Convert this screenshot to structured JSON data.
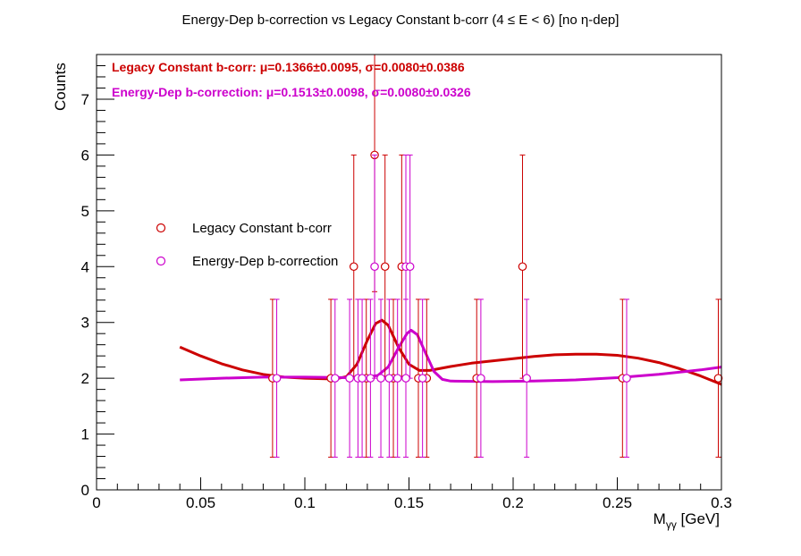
{
  "chart_data": {
    "type": "scatter",
    "title": "Energy-Dep b-correction vs Legacy Constant b-corr   (4 ≤ E < 6)   [no η-dep]",
    "xlabel": "M",
    "xlabel_sub": "γγ",
    "xlabel_unit": " [GeV]",
    "ylabel": "Counts",
    "xlim": [
      0,
      0.3
    ],
    "ylim": [
      0,
      7.8
    ],
    "x_ticks": [
      {
        "v": 0,
        "label": "0"
      },
      {
        "v": 0.05,
        "label": "0.05"
      },
      {
        "v": 0.1,
        "label": "0.1"
      },
      {
        "v": 0.15,
        "label": "0.15"
      },
      {
        "v": 0.2,
        "label": "0.2"
      },
      {
        "v": 0.25,
        "label": "0.25"
      },
      {
        "v": 0.3,
        "label": "0.3"
      }
    ],
    "y_ticks": [
      {
        "v": 0,
        "label": "0"
      },
      {
        "v": 1,
        "label": "1"
      },
      {
        "v": 2,
        "label": "2"
      },
      {
        "v": 3,
        "label": "3"
      },
      {
        "v": 4,
        "label": "4"
      },
      {
        "v": 5,
        "label": "5"
      },
      {
        "v": 6,
        "label": "6"
      },
      {
        "v": 7,
        "label": "7"
      }
    ],
    "grid": false,
    "legend_placement": "center-left",
    "stat_lines": [
      {
        "text": "Legacy Constant b-corr: μ=0.1366±0.0095, σ=0.0080±0.0386",
        "color": "#cc0000"
      },
      {
        "text": "Energy-Dep b-correction: μ=0.1513±0.0098, σ=0.0080±0.0326",
        "color": "#cc00cc"
      }
    ],
    "series": [
      {
        "name": "Legacy Constant b-corr",
        "color": "#cc0000",
        "points": [
          {
            "x": 0.0845,
            "y": 2,
            "err": 1.414
          },
          {
            "x": 0.1125,
            "y": 2,
            "err": 1.414
          },
          {
            "x": 0.1235,
            "y": 4,
            "err": 2.0
          },
          {
            "x": 0.1295,
            "y": 2,
            "err": 1.414
          },
          {
            "x": 0.1335,
            "y": 6,
            "err": 2.449
          },
          {
            "x": 0.1385,
            "y": 4,
            "err": 2.0
          },
          {
            "x": 0.1425,
            "y": 2,
            "err": 1.414
          },
          {
            "x": 0.1465,
            "y": 4,
            "err": 2.0
          },
          {
            "x": 0.1545,
            "y": 2,
            "err": 1.414
          },
          {
            "x": 0.1585,
            "y": 2,
            "err": 1.414
          },
          {
            "x": 0.1825,
            "y": 2,
            "err": 1.414
          },
          {
            "x": 0.2045,
            "y": 4,
            "err": 2.0
          },
          {
            "x": 0.2525,
            "y": 2,
            "err": 1.414
          },
          {
            "x": 0.2985,
            "y": 2,
            "err": 1.414
          }
        ],
        "fit": [
          {
            "x": 0.04,
            "y": 2.56
          },
          {
            "x": 0.05,
            "y": 2.4
          },
          {
            "x": 0.06,
            "y": 2.26
          },
          {
            "x": 0.07,
            "y": 2.15
          },
          {
            "x": 0.08,
            "y": 2.07
          },
          {
            "x": 0.09,
            "y": 2.02
          },
          {
            "x": 0.1,
            "y": 2.0
          },
          {
            "x": 0.11,
            "y": 1.99
          },
          {
            "x": 0.115,
            "y": 1.99
          },
          {
            "x": 0.12,
            "y": 2.03
          },
          {
            "x": 0.125,
            "y": 2.25
          },
          {
            "x": 0.13,
            "y": 2.68
          },
          {
            "x": 0.134,
            "y": 2.98
          },
          {
            "x": 0.137,
            "y": 3.04
          },
          {
            "x": 0.14,
            "y": 2.95
          },
          {
            "x": 0.145,
            "y": 2.55
          },
          {
            "x": 0.15,
            "y": 2.25
          },
          {
            "x": 0.155,
            "y": 2.14
          },
          {
            "x": 0.16,
            "y": 2.14
          },
          {
            "x": 0.17,
            "y": 2.21
          },
          {
            "x": 0.18,
            "y": 2.27
          },
          {
            "x": 0.19,
            "y": 2.31
          },
          {
            "x": 0.2,
            "y": 2.35
          },
          {
            "x": 0.21,
            "y": 2.39
          },
          {
            "x": 0.22,
            "y": 2.42
          },
          {
            "x": 0.23,
            "y": 2.43
          },
          {
            "x": 0.24,
            "y": 2.43
          },
          {
            "x": 0.25,
            "y": 2.41
          },
          {
            "x": 0.26,
            "y": 2.36
          },
          {
            "x": 0.27,
            "y": 2.28
          },
          {
            "x": 0.28,
            "y": 2.17
          },
          {
            "x": 0.29,
            "y": 2.04
          },
          {
            "x": 0.3,
            "y": 1.89
          }
        ]
      },
      {
        "name": "Energy-Dep b-correction",
        "color": "#cc00cc",
        "points": [
          {
            "x": 0.0865,
            "y": 2,
            "err": 1.414
          },
          {
            "x": 0.1145,
            "y": 2,
            "err": 1.414
          },
          {
            "x": 0.1215,
            "y": 2,
            "err": 1.414
          },
          {
            "x": 0.1255,
            "y": 2,
            "err": 1.414
          },
          {
            "x": 0.1275,
            "y": 2,
            "err": 1.414
          },
          {
            "x": 0.1315,
            "y": 2,
            "err": 1.414
          },
          {
            "x": 0.1335,
            "y": 4,
            "err": 2.0
          },
          {
            "x": 0.1365,
            "y": 2,
            "err": 1.414
          },
          {
            "x": 0.1405,
            "y": 2,
            "err": 1.414
          },
          {
            "x": 0.1445,
            "y": 2,
            "err": 1.414
          },
          {
            "x": 0.1485,
            "y": 4,
            "err": 2.0
          },
          {
            "x": 0.1505,
            "y": 4,
            "err": 2.0
          },
          {
            "x": 0.1485,
            "y": 2,
            "err": 1.414
          },
          {
            "x": 0.1565,
            "y": 2,
            "err": 1.414
          },
          {
            "x": 0.1845,
            "y": 2,
            "err": 1.414
          },
          {
            "x": 0.2065,
            "y": 2,
            "err": 1.414
          },
          {
            "x": 0.2545,
            "y": 2,
            "err": 1.414
          }
        ],
        "fit": [
          {
            "x": 0.04,
            "y": 1.97
          },
          {
            "x": 0.06,
            "y": 2.0
          },
          {
            "x": 0.08,
            "y": 2.02
          },
          {
            "x": 0.1,
            "y": 2.02
          },
          {
            "x": 0.12,
            "y": 2.01
          },
          {
            "x": 0.13,
            "y": 2.02
          },
          {
            "x": 0.135,
            "y": 2.05
          },
          {
            "x": 0.14,
            "y": 2.2
          },
          {
            "x": 0.145,
            "y": 2.55
          },
          {
            "x": 0.149,
            "y": 2.8
          },
          {
            "x": 0.151,
            "y": 2.86
          },
          {
            "x": 0.154,
            "y": 2.78
          },
          {
            "x": 0.158,
            "y": 2.45
          },
          {
            "x": 0.162,
            "y": 2.12
          },
          {
            "x": 0.166,
            "y": 1.98
          },
          {
            "x": 0.17,
            "y": 1.95
          },
          {
            "x": 0.19,
            "y": 1.94
          },
          {
            "x": 0.21,
            "y": 1.95
          },
          {
            "x": 0.23,
            "y": 1.97
          },
          {
            "x": 0.25,
            "y": 2.01
          },
          {
            "x": 0.27,
            "y": 2.07
          },
          {
            "x": 0.29,
            "y": 2.15
          },
          {
            "x": 0.3,
            "y": 2.2
          }
        ]
      }
    ]
  }
}
